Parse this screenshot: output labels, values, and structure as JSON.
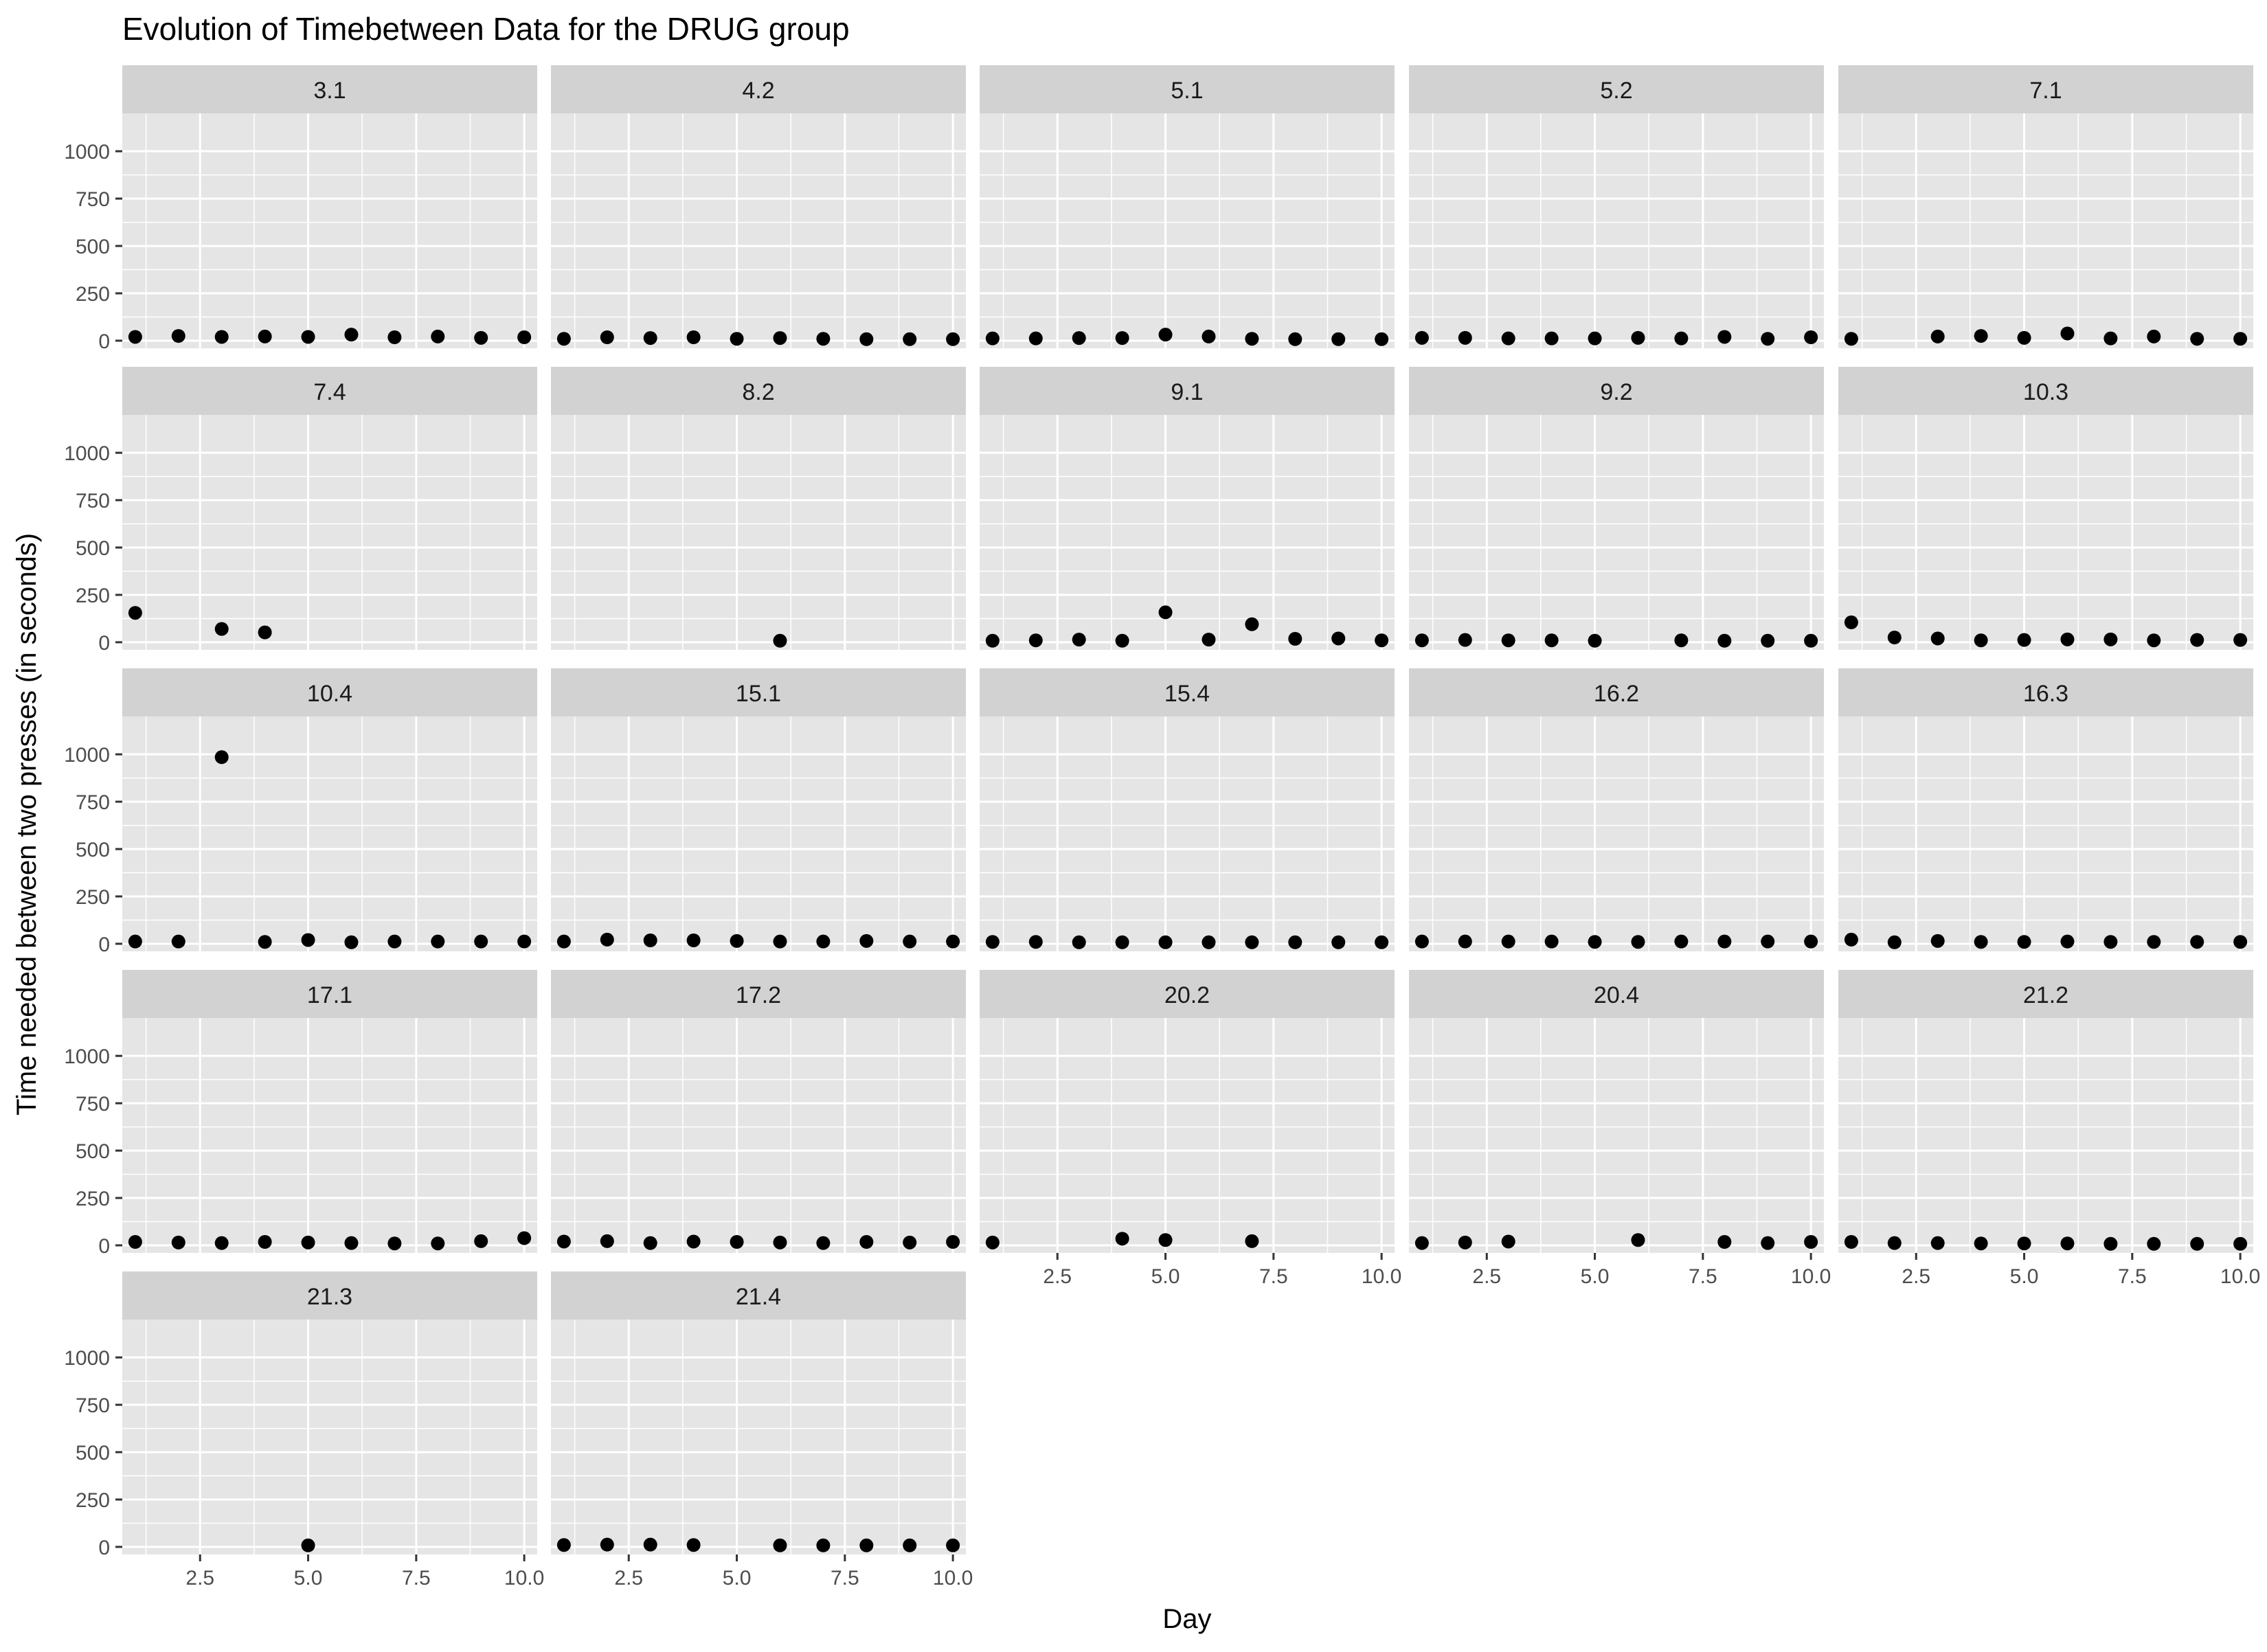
{
  "chart_data": {
    "type": "scatter",
    "title": "Evolution of Timebetween Data for the DRUG group",
    "xlabel": "Day",
    "ylabel": "Time needed between two presses (in seconds)",
    "xlim": [
      0.7,
      10.3
    ],
    "ylim": [
      -40,
      1200
    ],
    "x_ticks": [
      2.5,
      5.0,
      7.5,
      10.0
    ],
    "x_tick_labels": [
      "2.5",
      "5.0",
      "7.5",
      "10.0"
    ],
    "y_ticks": [
      0,
      250,
      500,
      750,
      1000
    ],
    "y_tick_labels": [
      "0",
      "250",
      "500",
      "750",
      "1000"
    ],
    "grid": true,
    "layout": "facet_wrap, 5 columns",
    "colors": {
      "panel_background": "#e5e5e5",
      "strip_background": "#d2d2d2",
      "grid": "#ffffff",
      "point": "#000000",
      "text": "#1a1a1a",
      "tick_text": "#4d4d4d"
    },
    "panels": [
      {
        "label": "3.1",
        "points": [
          [
            1,
            20
          ],
          [
            2,
            25
          ],
          [
            3,
            20
          ],
          [
            4,
            22
          ],
          [
            5,
            20
          ],
          [
            6,
            32
          ],
          [
            7,
            18
          ],
          [
            8,
            22
          ],
          [
            9,
            15
          ],
          [
            10,
            18
          ]
        ]
      },
      {
        "label": "4.2",
        "points": [
          [
            1,
            10
          ],
          [
            2,
            18
          ],
          [
            3,
            14
          ],
          [
            4,
            18
          ],
          [
            5,
            10
          ],
          [
            6,
            14
          ],
          [
            7,
            10
          ],
          [
            8,
            8
          ],
          [
            9,
            8
          ],
          [
            10,
            8
          ]
        ]
      },
      {
        "label": "5.1",
        "points": [
          [
            1,
            12
          ],
          [
            2,
            12
          ],
          [
            3,
            14
          ],
          [
            4,
            14
          ],
          [
            5,
            32
          ],
          [
            6,
            22
          ],
          [
            7,
            10
          ],
          [
            8,
            8
          ],
          [
            9,
            8
          ],
          [
            10,
            8
          ]
        ]
      },
      {
        "label": "5.2",
        "points": [
          [
            1,
            15
          ],
          [
            2,
            15
          ],
          [
            3,
            12
          ],
          [
            4,
            12
          ],
          [
            5,
            12
          ],
          [
            6,
            15
          ],
          [
            7,
            12
          ],
          [
            8,
            20
          ],
          [
            9,
            10
          ],
          [
            10,
            18
          ]
        ]
      },
      {
        "label": "7.1",
        "points": [
          [
            1,
            10
          ],
          [
            3,
            22
          ],
          [
            4,
            25
          ],
          [
            5,
            15
          ],
          [
            6,
            38
          ],
          [
            7,
            12
          ],
          [
            8,
            22
          ],
          [
            9,
            10
          ],
          [
            10,
            10
          ]
        ]
      },
      {
        "label": "7.4",
        "points": [
          [
            1,
            155
          ],
          [
            3,
            70
          ],
          [
            4,
            52
          ]
        ]
      },
      {
        "label": "8.2",
        "points": [
          [
            6,
            8
          ]
        ]
      },
      {
        "label": "9.1",
        "points": [
          [
            1,
            8
          ],
          [
            2,
            10
          ],
          [
            3,
            14
          ],
          [
            4,
            8
          ],
          [
            5,
            158
          ],
          [
            6,
            14
          ],
          [
            7,
            95
          ],
          [
            8,
            18
          ],
          [
            9,
            20
          ],
          [
            10,
            10
          ]
        ]
      },
      {
        "label": "9.2",
        "points": [
          [
            1,
            10
          ],
          [
            2,
            12
          ],
          [
            3,
            10
          ],
          [
            4,
            10
          ],
          [
            5,
            8
          ],
          [
            7,
            10
          ],
          [
            8,
            8
          ],
          [
            9,
            8
          ],
          [
            10,
            8
          ]
        ]
      },
      {
        "label": "10.3",
        "points": [
          [
            1,
            105
          ],
          [
            2,
            25
          ],
          [
            3,
            20
          ],
          [
            4,
            10
          ],
          [
            5,
            12
          ],
          [
            6,
            15
          ],
          [
            7,
            15
          ],
          [
            8,
            10
          ],
          [
            9,
            12
          ],
          [
            10,
            12
          ]
        ]
      },
      {
        "label": "10.4",
        "points": [
          [
            1,
            12
          ],
          [
            2,
            12
          ],
          [
            3,
            985
          ],
          [
            4,
            10
          ],
          [
            5,
            20
          ],
          [
            6,
            8
          ],
          [
            7,
            12
          ],
          [
            8,
            12
          ],
          [
            9,
            12
          ],
          [
            10,
            12
          ]
        ]
      },
      {
        "label": "15.1",
        "points": [
          [
            1,
            12
          ],
          [
            2,
            22
          ],
          [
            3,
            18
          ],
          [
            4,
            18
          ],
          [
            5,
            15
          ],
          [
            6,
            12
          ],
          [
            7,
            12
          ],
          [
            8,
            15
          ],
          [
            9,
            12
          ],
          [
            10,
            12
          ]
        ]
      },
      {
        "label": "15.4",
        "points": [
          [
            1,
            10
          ],
          [
            2,
            10
          ],
          [
            3,
            8
          ],
          [
            4,
            8
          ],
          [
            5,
            8
          ],
          [
            6,
            8
          ],
          [
            7,
            8
          ],
          [
            8,
            8
          ],
          [
            9,
            8
          ],
          [
            10,
            8
          ]
        ]
      },
      {
        "label": "16.2",
        "points": [
          [
            1,
            12
          ],
          [
            2,
            12
          ],
          [
            3,
            12
          ],
          [
            4,
            12
          ],
          [
            5,
            10
          ],
          [
            6,
            10
          ],
          [
            7,
            12
          ],
          [
            8,
            12
          ],
          [
            9,
            12
          ],
          [
            10,
            12
          ]
        ]
      },
      {
        "label": "16.3",
        "points": [
          [
            1,
            22
          ],
          [
            2,
            8
          ],
          [
            3,
            15
          ],
          [
            4,
            10
          ],
          [
            5,
            10
          ],
          [
            6,
            12
          ],
          [
            7,
            10
          ],
          [
            8,
            10
          ],
          [
            9,
            10
          ],
          [
            10,
            10
          ]
        ]
      },
      {
        "label": "17.1",
        "points": [
          [
            1,
            18
          ],
          [
            2,
            15
          ],
          [
            3,
            12
          ],
          [
            4,
            18
          ],
          [
            5,
            15
          ],
          [
            6,
            12
          ],
          [
            7,
            10
          ],
          [
            8,
            10
          ],
          [
            9,
            22
          ],
          [
            10,
            38
          ]
        ]
      },
      {
        "label": "17.2",
        "points": [
          [
            1,
            20
          ],
          [
            2,
            22
          ],
          [
            3,
            12
          ],
          [
            4,
            20
          ],
          [
            5,
            18
          ],
          [
            6,
            15
          ],
          [
            7,
            12
          ],
          [
            8,
            18
          ],
          [
            9,
            15
          ],
          [
            10,
            18
          ]
        ]
      },
      {
        "label": "20.2",
        "points": [
          [
            1,
            15
          ],
          [
            4,
            35
          ],
          [
            5,
            28
          ],
          [
            7,
            22
          ]
        ]
      },
      {
        "label": "20.4",
        "points": [
          [
            1,
            12
          ],
          [
            2,
            15
          ],
          [
            3,
            20
          ],
          [
            6,
            28
          ],
          [
            8,
            18
          ],
          [
            9,
            12
          ],
          [
            10,
            18
          ]
        ]
      },
      {
        "label": "21.2",
        "points": [
          [
            1,
            18
          ],
          [
            2,
            12
          ],
          [
            3,
            12
          ],
          [
            4,
            10
          ],
          [
            5,
            10
          ],
          [
            6,
            10
          ],
          [
            7,
            8
          ],
          [
            8,
            8
          ],
          [
            9,
            8
          ],
          [
            10,
            8
          ]
        ]
      },
      {
        "label": "21.3",
        "points": [
          [
            5,
            8
          ]
        ]
      },
      {
        "label": "21.4",
        "points": [
          [
            1,
            10
          ],
          [
            2,
            12
          ],
          [
            3,
            12
          ],
          [
            4,
            10
          ],
          [
            6,
            8
          ],
          [
            7,
            8
          ],
          [
            8,
            8
          ],
          [
            9,
            8
          ],
          [
            10,
            8
          ]
        ]
      }
    ]
  }
}
